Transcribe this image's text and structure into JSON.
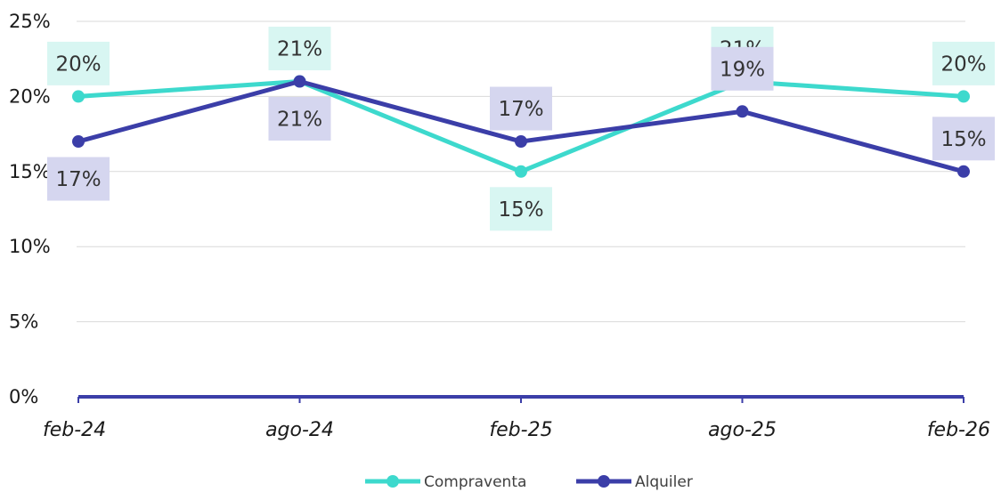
{
  "chart_data": {
    "type": "line",
    "categories": [
      "feb-24",
      "ago-24",
      "feb-25",
      "ago-25",
      "feb-26"
    ],
    "ylim": [
      0,
      25
    ],
    "yticks": [
      "0%",
      "5%",
      "10%",
      "15%",
      "20%",
      "25%"
    ],
    "ytick_values": [
      0,
      5,
      10,
      15,
      20,
      25
    ],
    "value_suffix": "%",
    "grid": true,
    "legend_position": "bottom",
    "series": [
      {
        "name": "Compraventa",
        "values": [
          20,
          21,
          15,
          21,
          20
        ],
        "labels": [
          "20%",
          "21%",
          "15%",
          "21%",
          "20%"
        ],
        "color": "#3DD9CD",
        "label_bg": "#D8F6F2"
      },
      {
        "name": "Alquiler",
        "values": [
          17,
          21,
          17,
          19,
          15
        ],
        "labels": [
          "17%",
          "21%",
          "17%",
          "19%",
          "15%"
        ],
        "color": "#3B3EA8",
        "label_bg": "#D5D6EF"
      }
    ]
  }
}
